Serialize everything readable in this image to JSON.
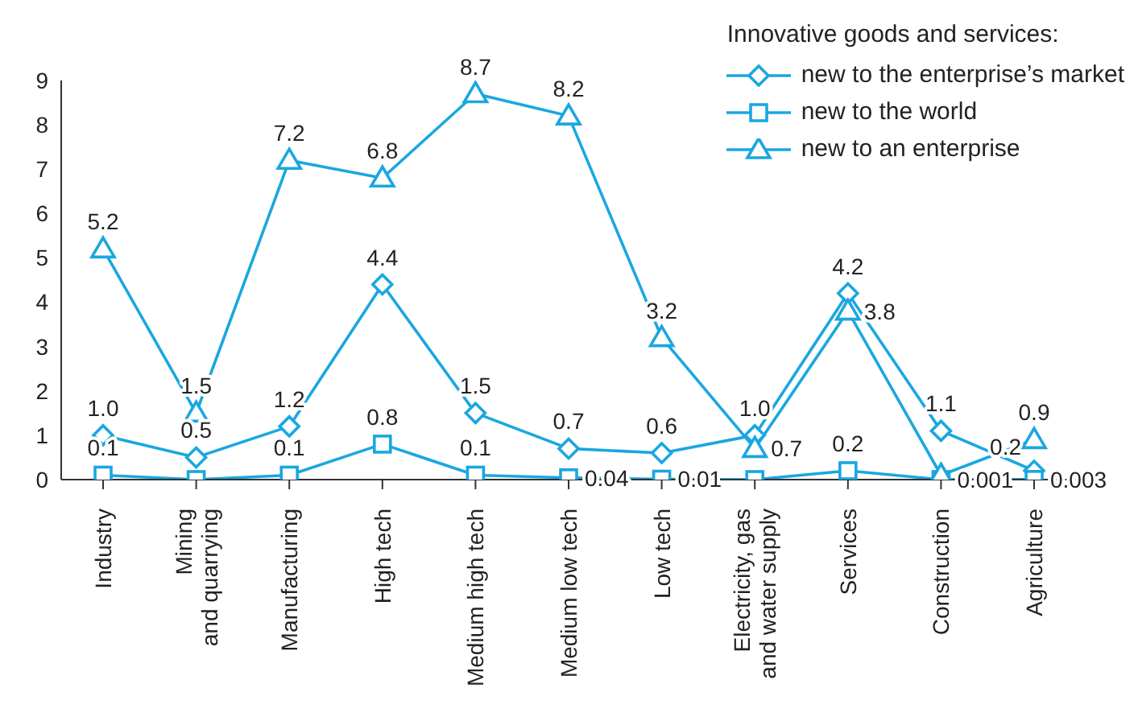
{
  "chart_data": {
    "type": "line",
    "legend_title": "Innovative goods and services:",
    "categories": [
      "Industry",
      "Mining and quarrying",
      "Manufacturing",
      "High tech",
      "Medium high tech",
      "Medium low tech",
      "Low tech",
      "Electricity, gas and water supply",
      "Services",
      "Construction",
      "Agriculture"
    ],
    "series": [
      {
        "name": "new to the enterprise’s market",
        "color": "#1aa7e0",
        "marker": "diamond",
        "values": [
          1.0,
          0.5,
          1.2,
          4.4,
          1.5,
          0.7,
          0.6,
          1.0,
          4.2,
          1.1,
          0.2
        ],
        "value_labels": [
          "1.0",
          "0.5",
          "1.2",
          "4.4",
          "1.5",
          "0.7",
          "0.6",
          "1.0",
          "4.2",
          "1.1",
          "0.2"
        ]
      },
      {
        "name": "new to the world",
        "color": "#1aa7e0",
        "marker": "square",
        "values": [
          0.1,
          0,
          0.1,
          0.8,
          0.1,
          0.04,
          0.01,
          0,
          0.2,
          0.001,
          0.003
        ],
        "value_labels": [
          "0.1",
          null,
          "0.1",
          "0.8",
          "0.1",
          "0.04",
          "0.01",
          null,
          "0.2",
          "0.001",
          "0.003"
        ]
      },
      {
        "name": "new to an enterprise",
        "color": "#1aa7e0",
        "marker": "triangle",
        "values": [
          5.2,
          1.5,
          7.2,
          6.8,
          8.7,
          8.2,
          3.2,
          0.7,
          3.8,
          0.1,
          0.9
        ],
        "value_labels": [
          "5.2",
          "1.5",
          "7.2",
          "6.8",
          "8.7",
          "8.2",
          "3.2",
          "0.7",
          "3.8",
          null,
          "0.9"
        ]
      }
    ],
    "ylim": [
      0,
      9
    ],
    "yticks": [
      0,
      1,
      2,
      3,
      4,
      5,
      6,
      7,
      8,
      9
    ],
    "legend": "top right"
  }
}
